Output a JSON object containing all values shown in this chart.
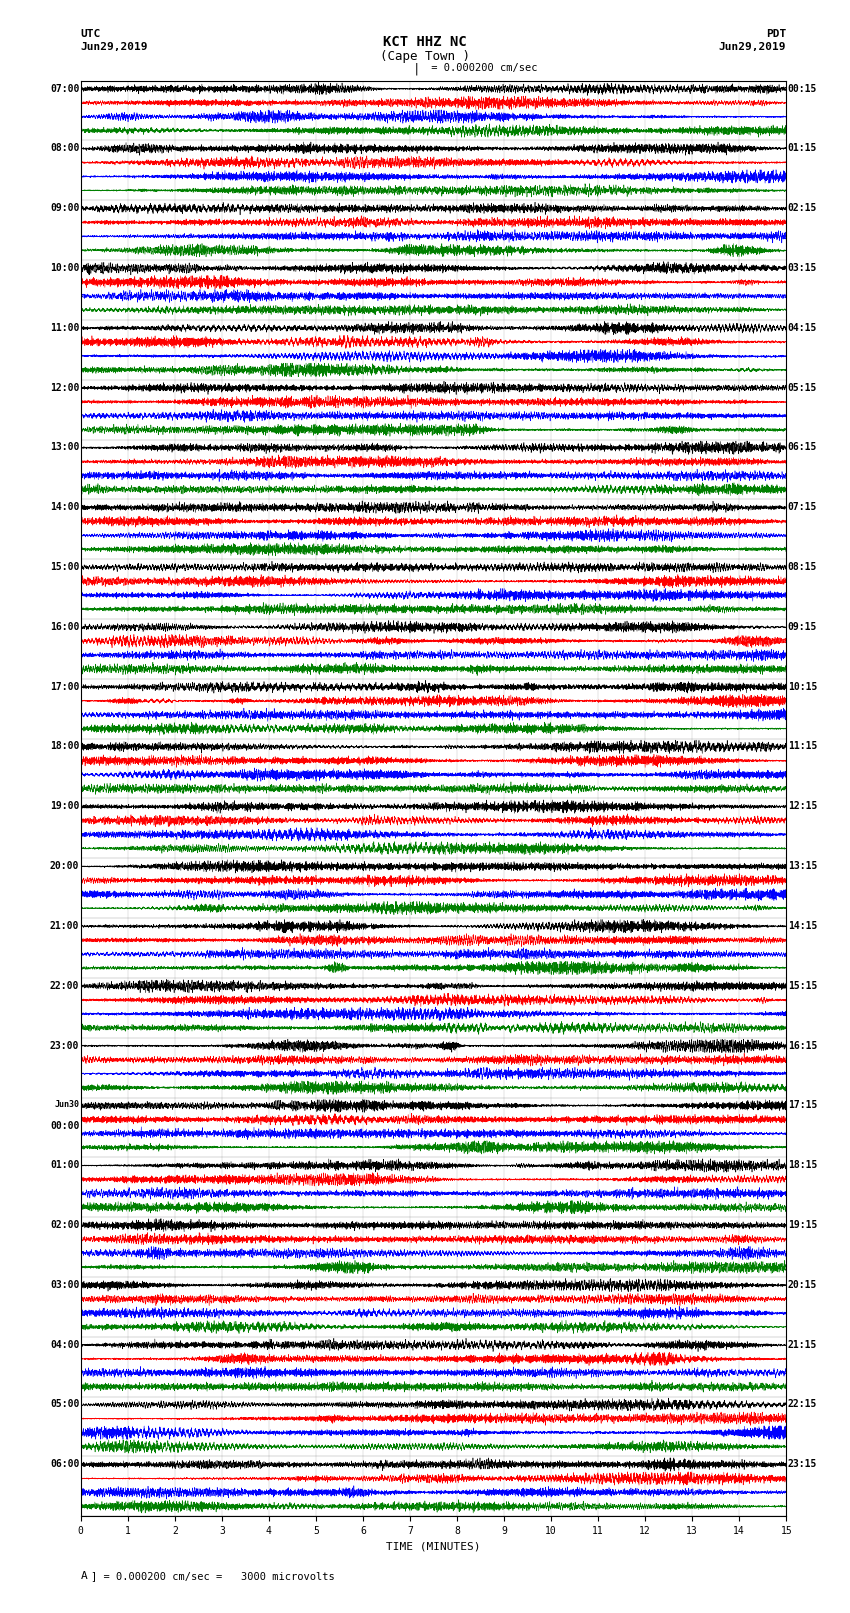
{
  "title_line1": "KCT HHZ NC",
  "title_line2": "(Cape Town )",
  "scale_label": "= 0.000200 cm/sec",
  "left_date": "Jun29,2019",
  "right_date": "Jun29,2019",
  "left_tz": "UTC",
  "right_tz": "PDT",
  "left_times_utc": [
    "07:00",
    "08:00",
    "09:00",
    "10:00",
    "11:00",
    "12:00",
    "13:00",
    "14:00",
    "15:00",
    "16:00",
    "17:00",
    "18:00",
    "19:00",
    "20:00",
    "21:00",
    "22:00",
    "23:00",
    "Jun30\n00:00",
    "01:00",
    "02:00",
    "03:00",
    "04:00",
    "05:00",
    "06:00"
  ],
  "right_times_pdt": [
    "00:15",
    "01:15",
    "02:15",
    "03:15",
    "04:15",
    "05:15",
    "06:15",
    "07:15",
    "08:15",
    "09:15",
    "10:15",
    "11:15",
    "12:15",
    "13:15",
    "14:15",
    "15:15",
    "16:15",
    "17:15",
    "18:15",
    "19:15",
    "20:15",
    "21:15",
    "22:15",
    "23:15"
  ],
  "xlabel": "TIME (MINUTES)",
  "footer_a": "A",
  "footer_b": "] = 0.000200 cm/sec =   3000 microvolts",
  "colors": [
    "black",
    "red",
    "blue",
    "green"
  ],
  "n_rows": 24,
  "traces_per_row": 4,
  "minutes_per_row": 15,
  "amplitude_scale": 1.0,
  "background": "white",
  "figwidth": 8.5,
  "figheight": 16.13
}
